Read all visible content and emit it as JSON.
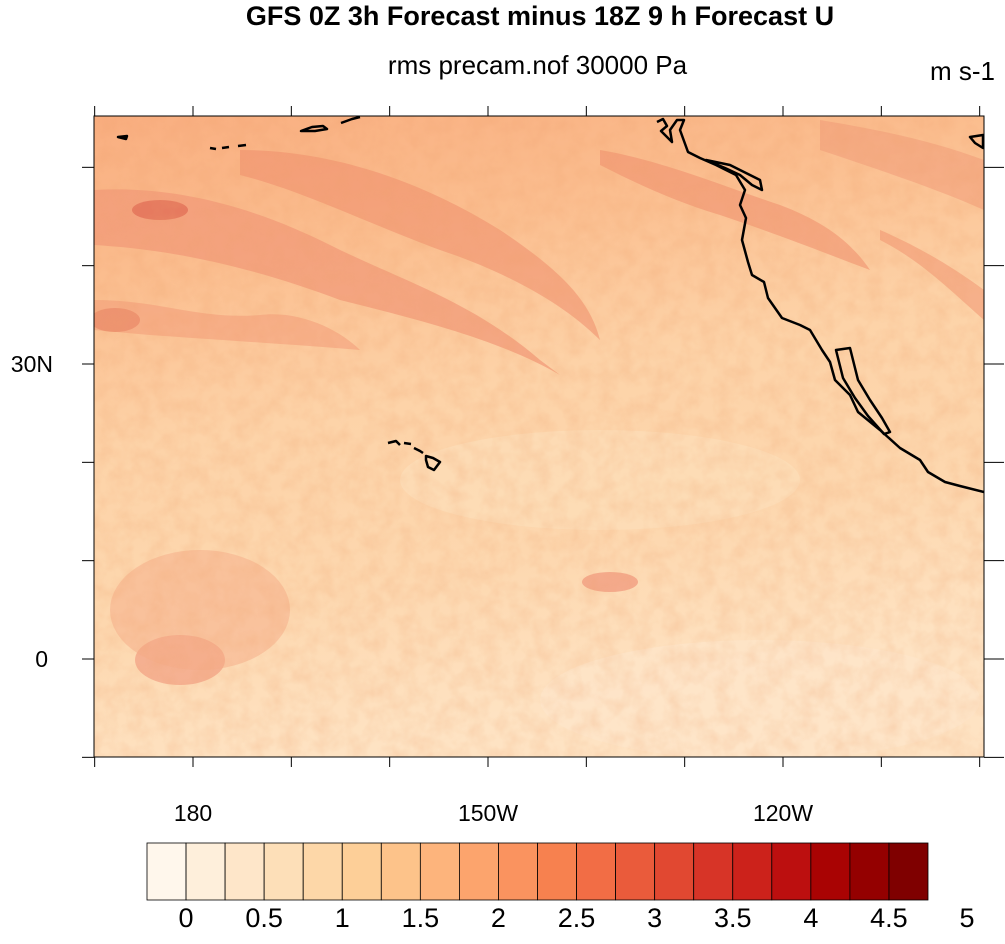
{
  "header": {
    "title": "GFS 0Z 3h Forecast minus 18Z 9 h Forecast U",
    "subtitle": "rms precam.nof 30000 Pa",
    "units": "m s-1"
  },
  "axes": {
    "x_ticks": [
      {
        "value": 180,
        "label": "180"
      },
      {
        "value": 210,
        "label": "150W"
      },
      {
        "value": 240,
        "label": "120W"
      }
    ],
    "y_ticks": [
      {
        "value": 30,
        "label": "30N"
      },
      {
        "value": 0,
        "label": "0"
      }
    ]
  },
  "colorbar": {
    "colors": [
      "#fff7ec",
      "#feefdb",
      "#fee6c9",
      "#fddfb8",
      "#fdd7a8",
      "#fdcf98",
      "#fdc38a",
      "#fdb47c",
      "#fca46d",
      "#fa935f",
      "#f7814f",
      "#f26d45",
      "#ea5b3b",
      "#e14831",
      "#d73427",
      "#cc221b",
      "#bc0f0f",
      "#a90303",
      "#940000",
      "#7f0000"
    ],
    "labels": [
      "0",
      "0.5",
      "1",
      "1.5",
      "2",
      "2.5",
      "3",
      "3.5",
      "4",
      "4.5",
      "5"
    ]
  }
}
